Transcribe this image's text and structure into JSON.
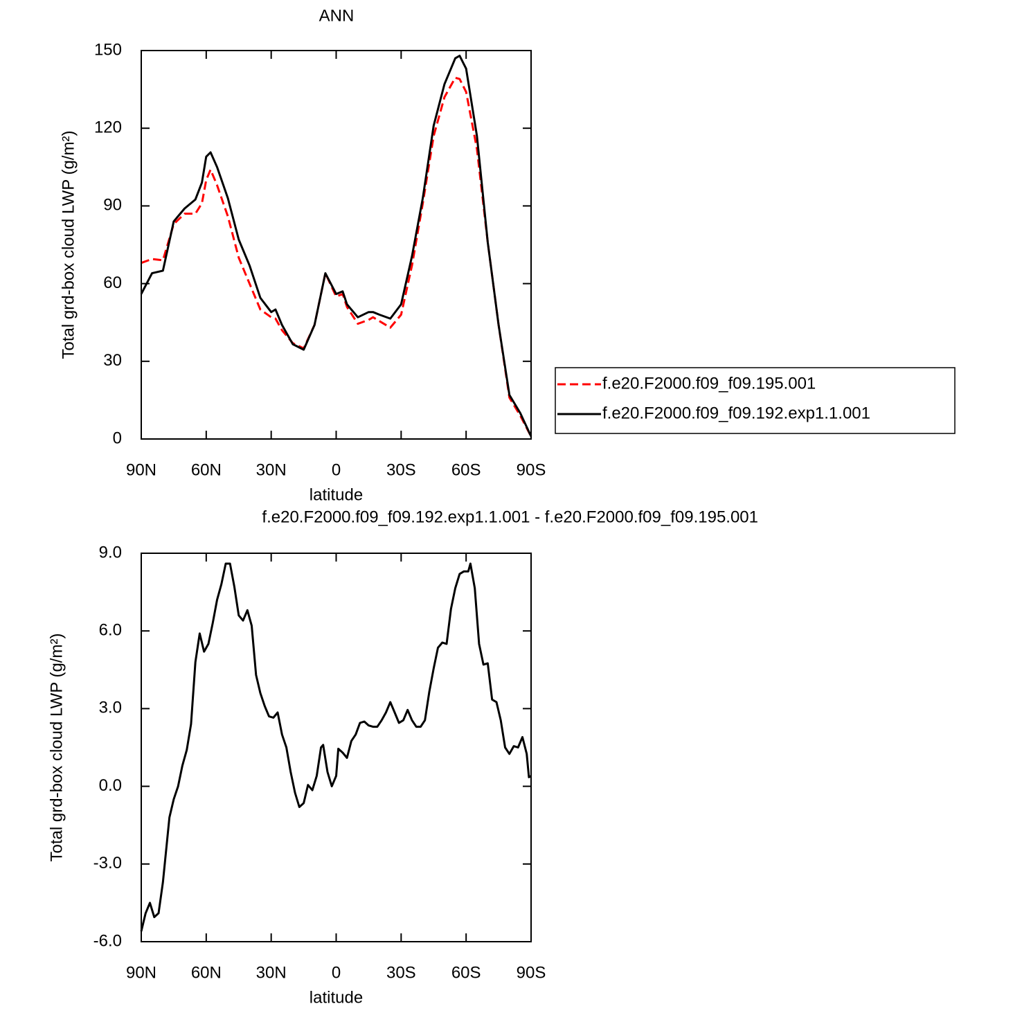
{
  "chart_data": [
    {
      "type": "line",
      "title": "ANN",
      "xlabel": "latitude",
      "ylabel": "Total grd-box cloud LWP (g/m²)",
      "x": [
        90,
        85,
        80,
        75,
        70,
        65,
        62,
        60,
        58,
        55,
        50,
        45,
        40,
        35,
        30,
        28,
        25,
        20,
        15,
        10,
        5,
        0,
        -3,
        -5,
        -10,
        -15,
        -17,
        -20,
        -25,
        -30,
        -35,
        -40,
        -45,
        -50,
        -55,
        -57,
        -60,
        -65,
        -70,
        -75,
        -80,
        -85,
        -90
      ],
      "series": [
        {
          "name": "f.e20.F2000.f09_f09.195.001",
          "color": "#ff0000",
          "style": "dashed",
          "values": [
            68,
            69.5,
            69,
            83,
            87,
            87,
            91,
            100,
            104,
            98,
            86,
            70,
            60,
            50,
            47,
            46.5,
            42,
            37,
            35,
            44,
            64,
            55,
            56,
            51,
            44.5,
            46,
            47,
            45.5,
            43,
            48,
            67,
            91,
            117,
            132,
            139.5,
            139,
            134,
            112,
            76,
            44,
            16,
            9,
            1
          ]
        },
        {
          "name": "f.e20.F2000.f09_f09.192.exp1.1.001",
          "color": "#000000",
          "style": "solid",
          "values": [
            56,
            64,
            65,
            84,
            89,
            92.5,
            99,
            109,
            110.7,
            105,
            93,
            77,
            67,
            54.5,
            49,
            50,
            44,
            36.6,
            34.5,
            44,
            64,
            56,
            57,
            52,
            47,
            49,
            49,
            48,
            46.5,
            52,
            70.6,
            93,
            121,
            137,
            147,
            148,
            143,
            117,
            76,
            44,
            17,
            10,
            1
          ]
        }
      ],
      "xlim": [
        90,
        -90
      ],
      "xticks": [
        {
          "value": 90,
          "label": "90N"
        },
        {
          "value": 60,
          "label": "60N"
        },
        {
          "value": 30,
          "label": "30N"
        },
        0,
        {
          "value": -30,
          "label": "30S"
        },
        {
          "value": -60,
          "label": "60S"
        },
        {
          "value": -90,
          "label": "90S"
        }
      ],
      "ylim": [
        0,
        150
      ],
      "yticks": [
        0,
        30,
        60,
        90,
        120,
        150
      ],
      "legend": "right"
    },
    {
      "type": "line",
      "title": "f.e20.F2000.f09_f09.192.exp1.1.001 - f.e20.F2000.f09_f09.195.001",
      "xlabel": "latitude",
      "ylabel": "Total grd-box cloud LWP (g/m²)",
      "x": [
        90,
        88,
        86,
        84,
        82,
        80,
        77,
        75,
        73,
        71,
        69,
        67,
        65,
        63,
        61,
        59,
        57,
        55,
        53,
        51,
        49,
        47,
        45,
        43,
        41,
        39,
        37,
        35,
        33,
        31,
        29,
        27,
        25,
        23,
        21,
        19,
        17,
        15,
        13,
        11,
        9,
        7,
        6,
        4,
        2,
        0,
        -1,
        -3,
        -5,
        -7,
        -9,
        -11,
        -13,
        -15,
        -17,
        -19,
        -21,
        -23,
        -25,
        -27,
        -29,
        -31,
        -33,
        -35,
        -37,
        -39,
        -41,
        -43,
        -45,
        -47,
        -49,
        -51,
        -53,
        -55,
        -57,
        -59,
        -61,
        -62,
        -64,
        -66,
        -68,
        -70,
        -72,
        -74,
        -76,
        -78,
        -80,
        -82,
        -84,
        -86,
        -88,
        -89,
        -90
      ],
      "values": [
        -5.6,
        -4.9,
        -4.5,
        -5.05,
        -4.9,
        -3.7,
        -1.2,
        -0.5,
        0,
        0.8,
        1.4,
        2.4,
        4.8,
        5.9,
        5.2,
        5.5,
        6.3,
        7.2,
        7.8,
        8.6,
        8.6,
        7.7,
        6.6,
        6.4,
        6.8,
        6.2,
        4.3,
        3.6,
        3.1,
        2.7,
        2.65,
        2.85,
        2,
        1.5,
        0.55,
        -0.25,
        -0.8,
        -0.65,
        0.05,
        -0.15,
        0.4,
        1.5,
        1.6,
        0.55,
        0,
        0.4,
        1.45,
        1.3,
        1.1,
        1.75,
        2,
        2.45,
        2.5,
        2.35,
        2.3,
        2.3,
        2.55,
        2.85,
        3.25,
        2.85,
        2.45,
        2.55,
        2.95,
        2.55,
        2.3,
        2.3,
        2.55,
        3.65,
        4.55,
        5.35,
        5.55,
        5.5,
        6.85,
        7.65,
        8.2,
        8.3,
        8.3,
        8.6,
        7.65,
        5.5,
        4.7,
        4.75,
        3.35,
        3.25,
        2.55,
        1.5,
        1.25,
        1.55,
        1.5,
        1.9,
        1.25,
        0.35,
        0.4
      ],
      "color": "#000000",
      "style": "solid",
      "xlim": [
        90,
        -90
      ],
      "xticks": [
        {
          "value": 90,
          "label": "90N"
        },
        {
          "value": 60,
          "label": "60N"
        },
        {
          "value": 30,
          "label": "30N"
        },
        0,
        {
          "value": -30,
          "label": "30S"
        },
        {
          "value": -60,
          "label": "60S"
        },
        {
          "value": -90,
          "label": "90S"
        }
      ],
      "ylim": [
        -6,
        9
      ],
      "yticks": [
        {
          "value": -6,
          "label": "-6.0"
        },
        {
          "value": -3,
          "label": "-3.0"
        },
        {
          "value": 0,
          "label": "0.0"
        },
        {
          "value": 3,
          "label": "3.0"
        },
        {
          "value": 6,
          "label": "6.0"
        },
        {
          "value": 9,
          "label": "9.0"
        }
      ]
    }
  ]
}
